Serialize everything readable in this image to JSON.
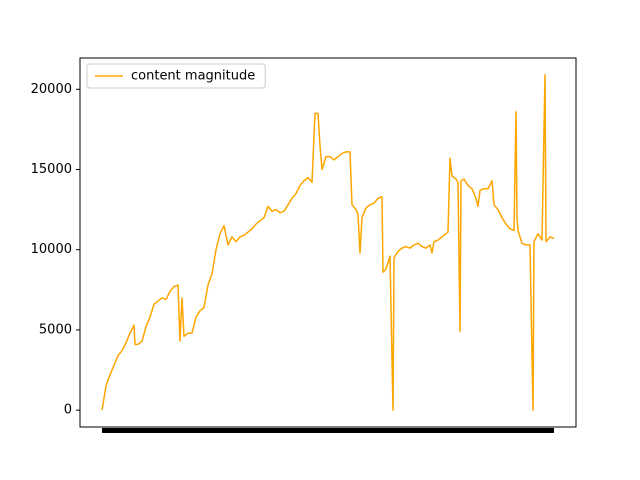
{
  "chart_data": {
    "type": "line",
    "series": [
      {
        "name": "content magnitude",
        "color": "#ffa500",
        "x": [
          0,
          4,
          8,
          12,
          16,
          20,
          24,
          28,
          32,
          33,
          36,
          40,
          44,
          48,
          52,
          56,
          60,
          64,
          68,
          72,
          76,
          78,
          80,
          82,
          86,
          90,
          94,
          98,
          102,
          106,
          110,
          114,
          118,
          122,
          126,
          130,
          134,
          138,
          142,
          146,
          150,
          154,
          158,
          162,
          166,
          170,
          174,
          178,
          182,
          186,
          190,
          194,
          198,
          202,
          206,
          210,
          213,
          216,
          218,
          220,
          224,
          228,
          232,
          236,
          240,
          244,
          248,
          250,
          254,
          256,
          258,
          260,
          264,
          268,
          272,
          276,
          280,
          281,
          284,
          288,
          291,
          292,
          296,
          300,
          304,
          308,
          312,
          316,
          320,
          324,
          328,
          330,
          332,
          336,
          340,
          344,
          346,
          348,
          350,
          354,
          356,
          358,
          359,
          362,
          366,
          370,
          374,
          376,
          378,
          382,
          386,
          390,
          392,
          396,
          400,
          404,
          408,
          412,
          414,
          415,
          416,
          420,
          424,
          428,
          431,
          432,
          436,
          440,
          443,
          444,
          448,
          452
        ],
        "values": [
          0,
          1500,
          2200,
          2800,
          3400,
          3700,
          4200,
          4800,
          5300,
          4100,
          4100,
          4300,
          5200,
          5800,
          6600,
          6800,
          7000,
          6900,
          7400,
          7700,
          7800,
          4300,
          7000,
          4600,
          4800,
          4800,
          5800,
          6200,
          6400,
          7800,
          8500,
          10000,
          11000,
          11500,
          10300,
          10800,
          10500,
          10800,
          10900,
          11100,
          11300,
          11600,
          11800,
          12000,
          12700,
          12400,
          12500,
          12300,
          12400,
          12800,
          13200,
          13500,
          14000,
          14300,
          14500,
          14200,
          18500,
          18500,
          16500,
          15000,
          15800,
          15800,
          15600,
          15800,
          16000,
          16100,
          16100,
          12800,
          12500,
          12200,
          9800,
          12000,
          12600,
          12800,
          12900,
          13200,
          13300,
          8600,
          8800,
          9600,
          0,
          9500,
          9900,
          10100,
          10200,
          10100,
          10300,
          10400,
          10200,
          10100,
          10300,
          9800,
          10500,
          10600,
          10800,
          11000,
          11100,
          15700,
          14600,
          14400,
          14200,
          4900,
          14300,
          14400,
          14000,
          13800,
          13200,
          12700,
          13700,
          13800,
          13800,
          14300,
          12800,
          12500,
          12000,
          11600,
          11300,
          11200,
          18600,
          12000,
          11200,
          10400,
          10300,
          10300,
          0,
          10500,
          11000,
          10600,
          20900,
          10500,
          10800,
          10700
        ]
      }
    ],
    "xlim": [
      -22,
      474
    ],
    "ylim": [
      -1050,
      21950
    ],
    "yticks": [
      0,
      5000,
      10000,
      15000,
      20000
    ],
    "legend": "upper left"
  }
}
